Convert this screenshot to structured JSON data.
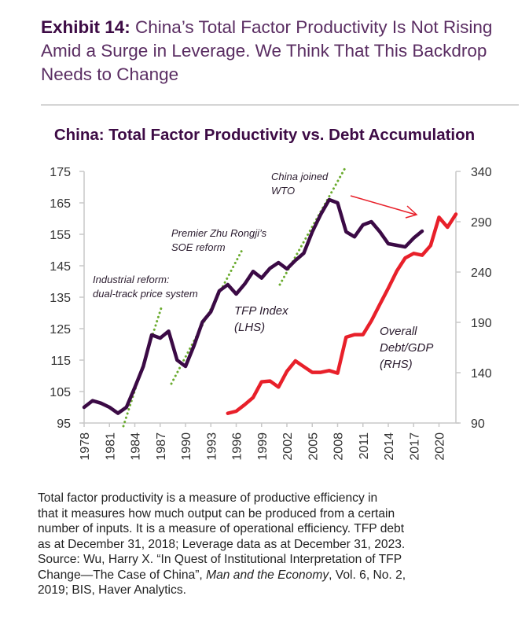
{
  "title": {
    "bold": "Exhibit 14:",
    "rest": " China’s Total Factor Productivity Is Not Rising Amid a Surge in Leverage. We Think That This Backdrop Needs to Change"
  },
  "footnote": {
    "lines": [
      "Total factor productivity is a measure of productive efficiency in",
      "that it measures how much output can be produced from a certain",
      "number of inputs. It is a measure of operational efficiency. TFP debt",
      "as at December 31, 2018; Leverage data as at December 31, 2023.",
      "Source: Wu, Harry X. “In Quest of Institutional Interpretation of TFP",
      "2019; BIS, Haver Analytics."
    ],
    "line6_pre": "Change—The Case of China”, ",
    "line6_italic": "Man and the Economy",
    "line6_post": ", Vol. 6, No. 2,"
  },
  "chart_data": {
    "type": "line",
    "title": "China: Total Factor Productivity vs. Debt Accumulation",
    "x_ticks": [
      1978,
      1981,
      1984,
      1987,
      1990,
      1993,
      1996,
      1999,
      2002,
      2005,
      2008,
      2011,
      2014,
      2017,
      2020
    ],
    "xlim": [
      1978,
      2022
    ],
    "y_left": {
      "ticks": [
        95,
        105,
        115,
        125,
        135,
        145,
        155,
        165,
        175
      ],
      "lim": [
        95,
        175
      ]
    },
    "y_right": {
      "ticks": [
        90,
        140,
        190,
        240,
        290,
        340
      ],
      "lim": [
        90,
        340
      ]
    },
    "grid": false,
    "series": [
      {
        "name": "TFP Index (LHS)",
        "label_lines": [
          "TFP Index",
          "(LHS)"
        ],
        "axis": "left",
        "color": "#3b0a45",
        "x": [
          1978,
          1979,
          1980,
          1981,
          1982,
          1983,
          1984,
          1985,
          1986,
          1987,
          1988,
          1989,
          1990,
          1991,
          1992,
          1993,
          1994,
          1995,
          1996,
          1997,
          1998,
          1999,
          2000,
          2001,
          2002,
          2003,
          2004,
          2005,
          2006,
          2007,
          2008,
          2009,
          2010,
          2011,
          2012,
          2013,
          2014,
          2015,
          2016,
          2017,
          2018
        ],
        "y": [
          100,
          102.1,
          101.3,
          100,
          98.1,
          100,
          106.3,
          113,
          123,
          122,
          124.2,
          115,
          113,
          119.6,
          127.1,
          130.4,
          137,
          139,
          136,
          139.2,
          143.2,
          141.1,
          144.2,
          146,
          144,
          146.7,
          149,
          155.8,
          161.3,
          166,
          165,
          155.8,
          154.2,
          158,
          159,
          155.8,
          152,
          151.5,
          151,
          153.8,
          156
        ]
      },
      {
        "name": "Overall Debt/GDP (RHS)",
        "label_lines": [
          "Overall",
          "Debt/GDP",
          "(RHS)"
        ],
        "axis": "right",
        "color": "#e8202a",
        "x": [
          1995,
          1996,
          1997,
          1998,
          1999,
          2000,
          2001,
          2002,
          2003,
          2004,
          2005,
          2006,
          2007,
          2008,
          2009,
          2010,
          2011,
          2012,
          2013,
          2014,
          2015,
          2016,
          2017,
          2018,
          2019,
          2020,
          2021,
          2022
        ],
        "y": [
          99.6,
          101.7,
          108.2,
          115.3,
          130.9,
          131.7,
          125.7,
          141.3,
          151.7,
          146,
          140.3,
          140.3,
          142.1,
          139.5,
          175.2,
          177.8,
          177.8,
          191.6,
          208,
          224,
          241,
          254,
          258.5,
          256.7,
          266.3,
          294.4,
          284.5,
          297.5
        ]
      }
    ],
    "annotations": [
      {
        "text_lines": [
          "Industrial reform:",
          "dual-track price system"
        ]
      },
      {
        "text_lines": [
          "Premier Zhu Rongji’s",
          "SOE reform"
        ]
      },
      {
        "text_lines": [
          "China joined",
          "WTO"
        ]
      }
    ],
    "trend_line_color": "#6aab2e",
    "arrow_color": "#e8202a"
  }
}
